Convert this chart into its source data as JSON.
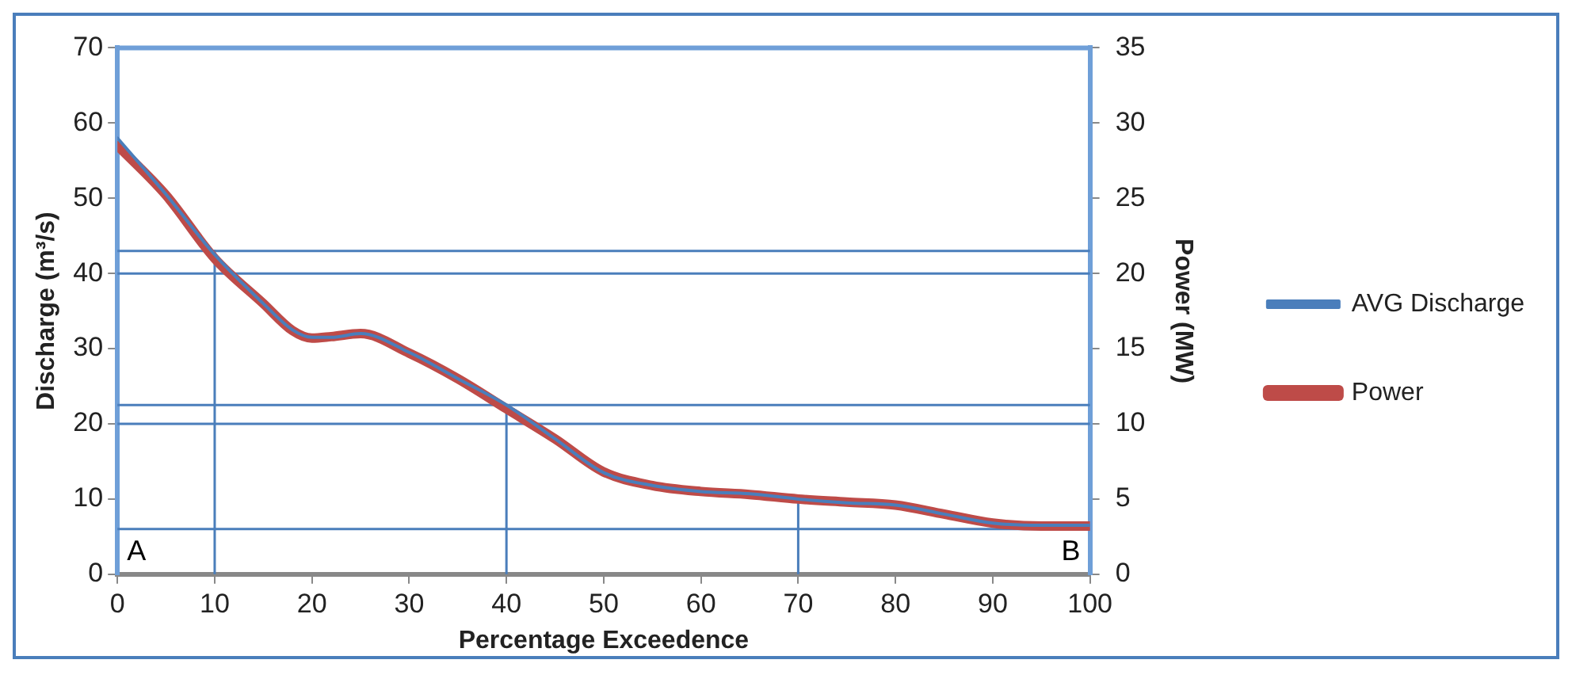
{
  "chart_data": {
    "type": "line",
    "xlabel": "Percentage Exceedence",
    "ylabel": "Discharge (m³/s)",
    "y2label": "Power (MW)",
    "xlim": [
      0,
      100
    ],
    "xticks": [
      0,
      10,
      20,
      30,
      40,
      50,
      60,
      70,
      80,
      90,
      100
    ],
    "ylim": [
      0,
      70
    ],
    "yticks": [
      0,
      10,
      20,
      30,
      40,
      50,
      60,
      70
    ],
    "y2lim": [
      0,
      35
    ],
    "y2ticks": [
      0,
      5,
      10,
      15,
      20,
      25,
      30,
      35
    ],
    "grid": false,
    "legend": "right",
    "line_style": "solid",
    "marker": "none",
    "series": [
      {
        "name": "AVG Discharge",
        "color": "#4a7ebb",
        "axis": "y",
        "x": [
          0,
          5,
          10,
          15,
          18,
          20,
          22,
          25,
          30,
          35,
          40,
          45,
          50,
          55,
          60,
          65,
          70,
          75,
          80,
          85,
          90,
          95,
          100
        ],
        "values": [
          58,
          50.5,
          42.5,
          36,
          32.5,
          31.5,
          31.5,
          32,
          29.5,
          26,
          22.5,
          18,
          13.5,
          11.8,
          11,
          10.7,
          10,
          9.5,
          9.2,
          8,
          6.8,
          6.5,
          6.5
        ]
      },
      {
        "name": "Power",
        "color": "#be4b48",
        "axis": "y2",
        "x": [
          0,
          5,
          10,
          15,
          18,
          20,
          22,
          25,
          30,
          35,
          40,
          45,
          50,
          55,
          60,
          65,
          70,
          75,
          80,
          85,
          90,
          95,
          100
        ],
        "values": [
          28.5,
          25.2,
          21,
          18,
          16.2,
          15.7,
          15.8,
          16,
          14.7,
          13,
          11,
          9,
          6.8,
          5.9,
          5.5,
          5.3,
          5,
          4.8,
          4.6,
          4,
          3.4,
          3.2,
          3.2
        ]
      },
      {
        "color": "#4a7ebb",
        "axis": "y",
        "x": [
          10,
          10
        ],
        "values": [
          0,
          43
        ]
      },
      {
        "color": "#4a7ebb",
        "axis": "y",
        "x": [
          40,
          40
        ],
        "values": [
          0,
          22.5
        ]
      },
      {
        "color": "#4a7ebb",
        "axis": "y",
        "x": [
          70,
          70
        ],
        "values": [
          0,
          10
        ]
      }
    ],
    "ref_lines": [
      {
        "axis": "y",
        "value": 43,
        "color": "#4a7ebb"
      },
      {
        "axis": "y",
        "value": 40,
        "color": "#4a7ebb"
      },
      {
        "axis": "y",
        "value": 22.5,
        "color": "#4a7ebb"
      },
      {
        "axis": "y",
        "value": 20,
        "color": "#4a7ebb"
      },
      {
        "axis": "y",
        "value": 6,
        "color": "#4a7ebb"
      }
    ],
    "annotations": [
      "A",
      "B"
    ]
  }
}
